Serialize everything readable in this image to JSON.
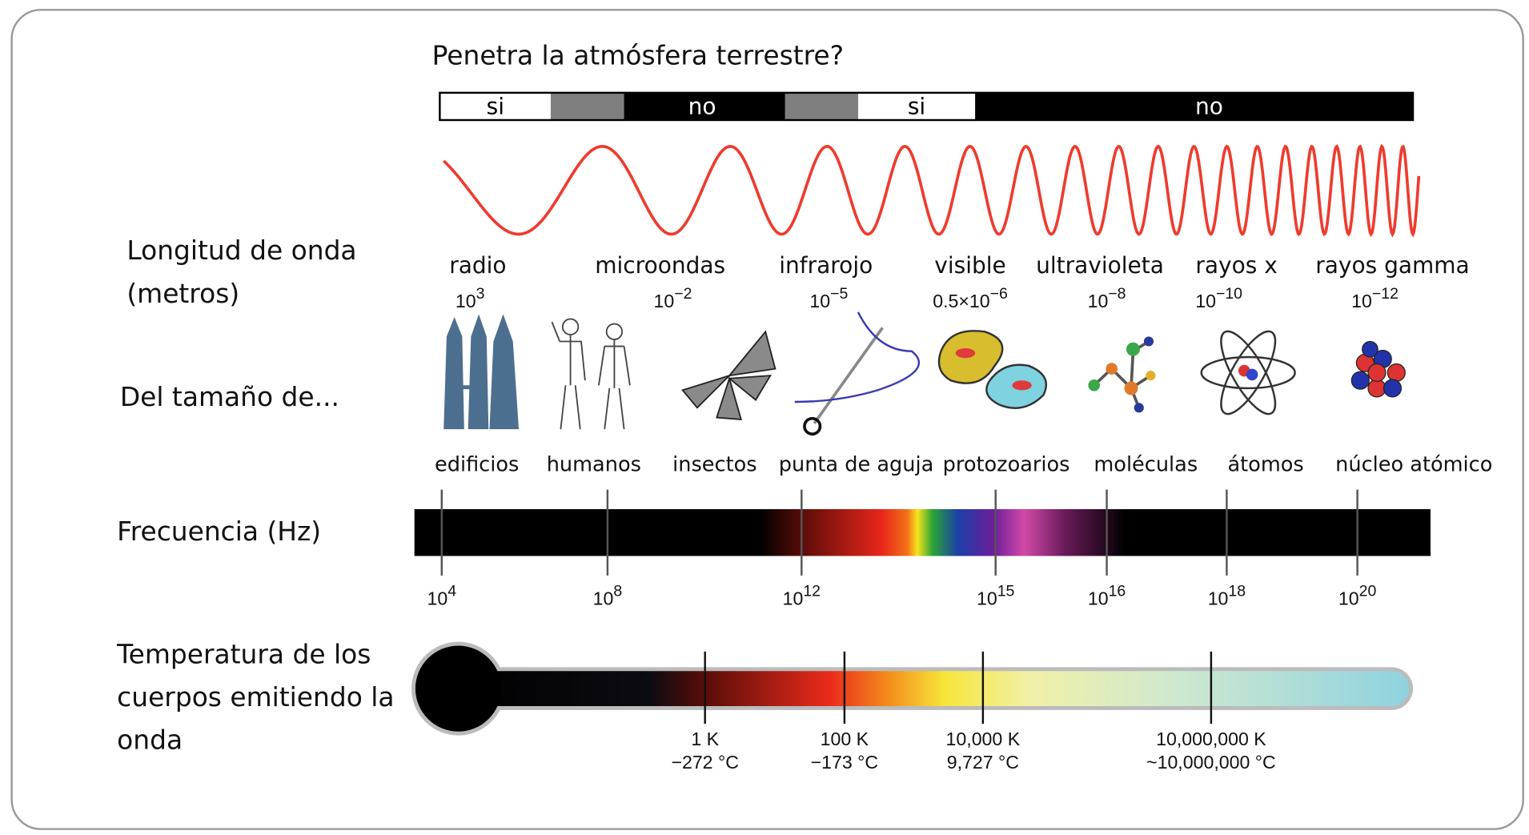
{
  "title": "Penetra la atmósfera terrestre?",
  "atmosphere": [
    "si",
    "no",
    "si",
    "no"
  ],
  "row_labels": {
    "wavelength": [
      "Longitud de onda",
      "(metros)"
    ],
    "size": "Del tamaño de...",
    "frequency": "Frecuencia (Hz)",
    "temperature": [
      "Temperatura de los",
      "cuerpos emitiendo la",
      "onda"
    ]
  },
  "bands": [
    {
      "name": "radio",
      "wavelength": {
        "base": "10",
        "exp": "3"
      }
    },
    {
      "name": "microondas",
      "wavelength": {
        "base": "10",
        "exp": "−2"
      }
    },
    {
      "name": "infrarojo",
      "wavelength": {
        "base": "10",
        "exp": "−5"
      }
    },
    {
      "name": "visible",
      "wavelength": {
        "base": "0.5×10",
        "exp": "−6"
      }
    },
    {
      "name": "ultravioleta",
      "wavelength": {
        "base": "10",
        "exp": "−8"
      }
    },
    {
      "name": "rayos x",
      "wavelength": {
        "base": "10",
        "exp": "−10"
      }
    },
    {
      "name": "rayos gamma",
      "wavelength": {
        "base": "10",
        "exp": "−12"
      }
    }
  ],
  "sizes": [
    "edificios",
    "humanos",
    "insectos",
    "punta de aguja",
    "protozoarios",
    "moléculas",
    "átomos",
    "núcleo atómico"
  ],
  "frequency_ticks": [
    {
      "base": "10",
      "exp": "4"
    },
    {
      "base": "10",
      "exp": "8"
    },
    {
      "base": "10",
      "exp": "12"
    },
    {
      "base": "10",
      "exp": "15"
    },
    {
      "base": "10",
      "exp": "16"
    },
    {
      "base": "10",
      "exp": "18"
    },
    {
      "base": "10",
      "exp": "20"
    }
  ],
  "temperature_ticks": [
    {
      "kelvin": "1 K",
      "celsius": "−272 °C"
    },
    {
      "kelvin": "100 K",
      "celsius": "−173 °C"
    },
    {
      "kelvin": "10,000 K",
      "celsius": "9,727 °C"
    },
    {
      "kelvin": "10,000,000 K",
      "celsius": "~10,000,000 °C"
    }
  ]
}
